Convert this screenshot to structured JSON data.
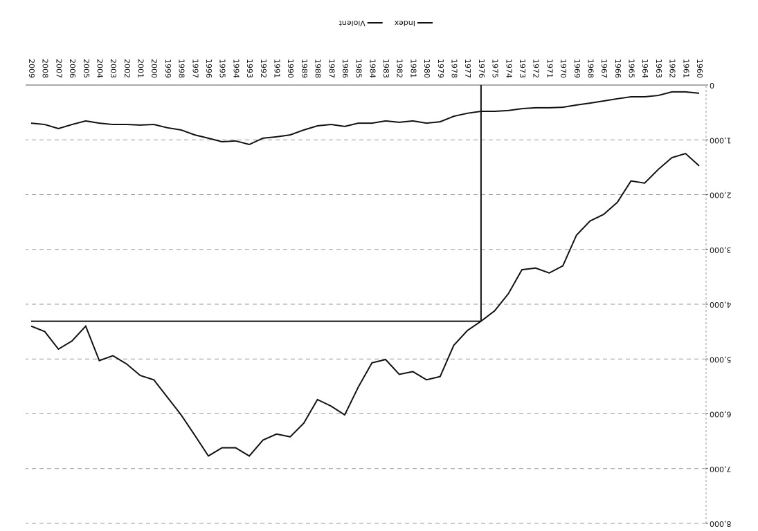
{
  "chart_data": {
    "type": "line",
    "categories": [
      "1960",
      "1961",
      "1962",
      "1963",
      "1964",
      "1965",
      "1966",
      "1967",
      "1968",
      "1969",
      "1970",
      "1971",
      "1972",
      "1973",
      "1974",
      "1975",
      "1976",
      "1977",
      "1978",
      "1979",
      "1980",
      "1981",
      "1982",
      "1983",
      "1984",
      "1985",
      "1986",
      "1987",
      "1988",
      "1989",
      "1990",
      "1991",
      "1992",
      "1993",
      "1994",
      "1995",
      "1996",
      "1997",
      "1998",
      "1999",
      "2000",
      "2001",
      "2002",
      "2003",
      "2004",
      "2005",
      "2006",
      "2007",
      "2008",
      "2009"
    ],
    "series": [
      {
        "name": "Index",
        "color": "#111111",
        "values": [
          1475,
          1250,
          1325,
          1540,
          1790,
          1750,
          2140,
          2360,
          2480,
          2740,
          3300,
          3430,
          3340,
          3370,
          3810,
          4120,
          4310,
          4480,
          4750,
          5320,
          5380,
          5230,
          5280,
          5010,
          5070,
          5510,
          6020,
          5860,
          5740,
          6170,
          6420,
          6370,
          6480,
          6770,
          6620,
          6620,
          6770,
          6390,
          6020,
          5700,
          5380,
          5300,
          5090,
          4940,
          5030,
          4400,
          4670,
          4820,
          4500,
          4400
        ]
      },
      {
        "name": "Violent",
        "color": "#111111",
        "values": [
          150,
          125,
          125,
          190,
          215,
          215,
          250,
          290,
          330,
          365,
          405,
          415,
          415,
          430,
          465,
          480,
          480,
          515,
          570,
          670,
          695,
          655,
          680,
          655,
          695,
          695,
          755,
          720,
          745,
          820,
          910,
          945,
          970,
          1085,
          1020,
          1035,
          970,
          910,
          820,
          780,
          720,
          730,
          720,
          720,
          695,
          655,
          720,
          795,
          720,
          695
        ]
      }
    ],
    "ylim": [
      0,
      8000
    ],
    "yticks": [
      0,
      {
        "value": 1000,
        "label": "1,000"
      },
      {
        "value": 2000,
        "label": "2,000"
      },
      {
        "value": 3000,
        "label": "3,000"
      },
      {
        "value": 4000,
        "label": "4,000"
      },
      {
        "value": 5000,
        "label": "5,000"
      },
      {
        "value": 6000,
        "label": "6,000"
      },
      {
        "value": 7000,
        "label": "7,000"
      },
      {
        "value": 8000,
        "label": "8,000"
      }
    ],
    "grid": true,
    "marker": {
      "x": "1976",
      "y": 4310
    },
    "legend": "bottom"
  }
}
